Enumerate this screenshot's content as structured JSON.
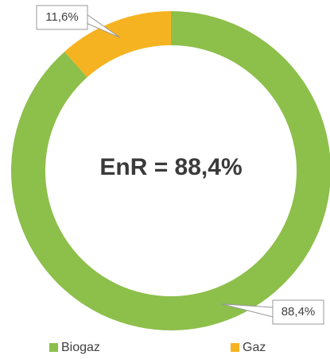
{
  "chart_data": {
    "type": "donut",
    "annotation": "EnR = 88,4%",
    "categories": [
      "Biogaz",
      "Gaz"
    ],
    "values": [
      88.4,
      11.6
    ],
    "value_labels": [
      "88,4%",
      "11,6%"
    ],
    "colors": [
      "#8dbf4b",
      "#f6b321"
    ],
    "legend": "bottom"
  }
}
